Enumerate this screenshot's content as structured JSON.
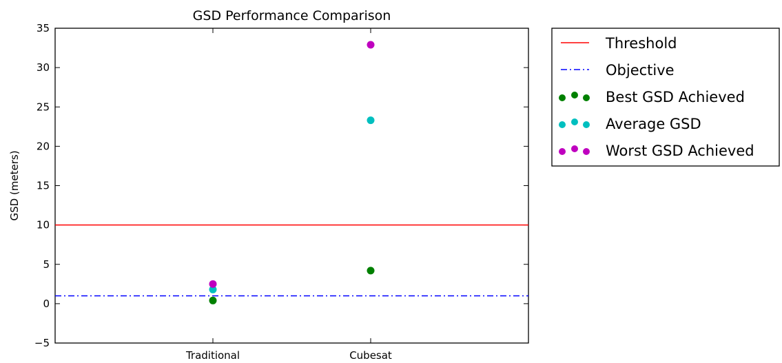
{
  "chart_data": {
    "type": "scatter",
    "title": "GSD Performance Comparison",
    "xlabel": "",
    "ylabel": "GSD (meters)",
    "categories": [
      "Traditional",
      "Cubesat"
    ],
    "xlim": [
      0,
      3
    ],
    "ylim": [
      -5,
      35
    ],
    "yticks": [
      -5,
      0,
      5,
      10,
      15,
      20,
      25,
      30,
      35
    ],
    "grid": false,
    "legend_position": "outside-right",
    "reference_lines": [
      {
        "name": "Threshold",
        "y": 10,
        "color": "#ff0000",
        "style": "solid"
      },
      {
        "name": "Objective",
        "y": 1,
        "color": "#0000ff",
        "style": "dashdot"
      }
    ],
    "series": [
      {
        "name": "Best GSD Achieved",
        "color": "#008000",
        "values": [
          0.4,
          4.2
        ]
      },
      {
        "name": "Average GSD",
        "color": "#00bfbf",
        "values": [
          1.8,
          23.3
        ]
      },
      {
        "name": "Worst GSD Achieved",
        "color": "#bf00bf",
        "values": [
          2.5,
          32.9
        ]
      }
    ]
  }
}
